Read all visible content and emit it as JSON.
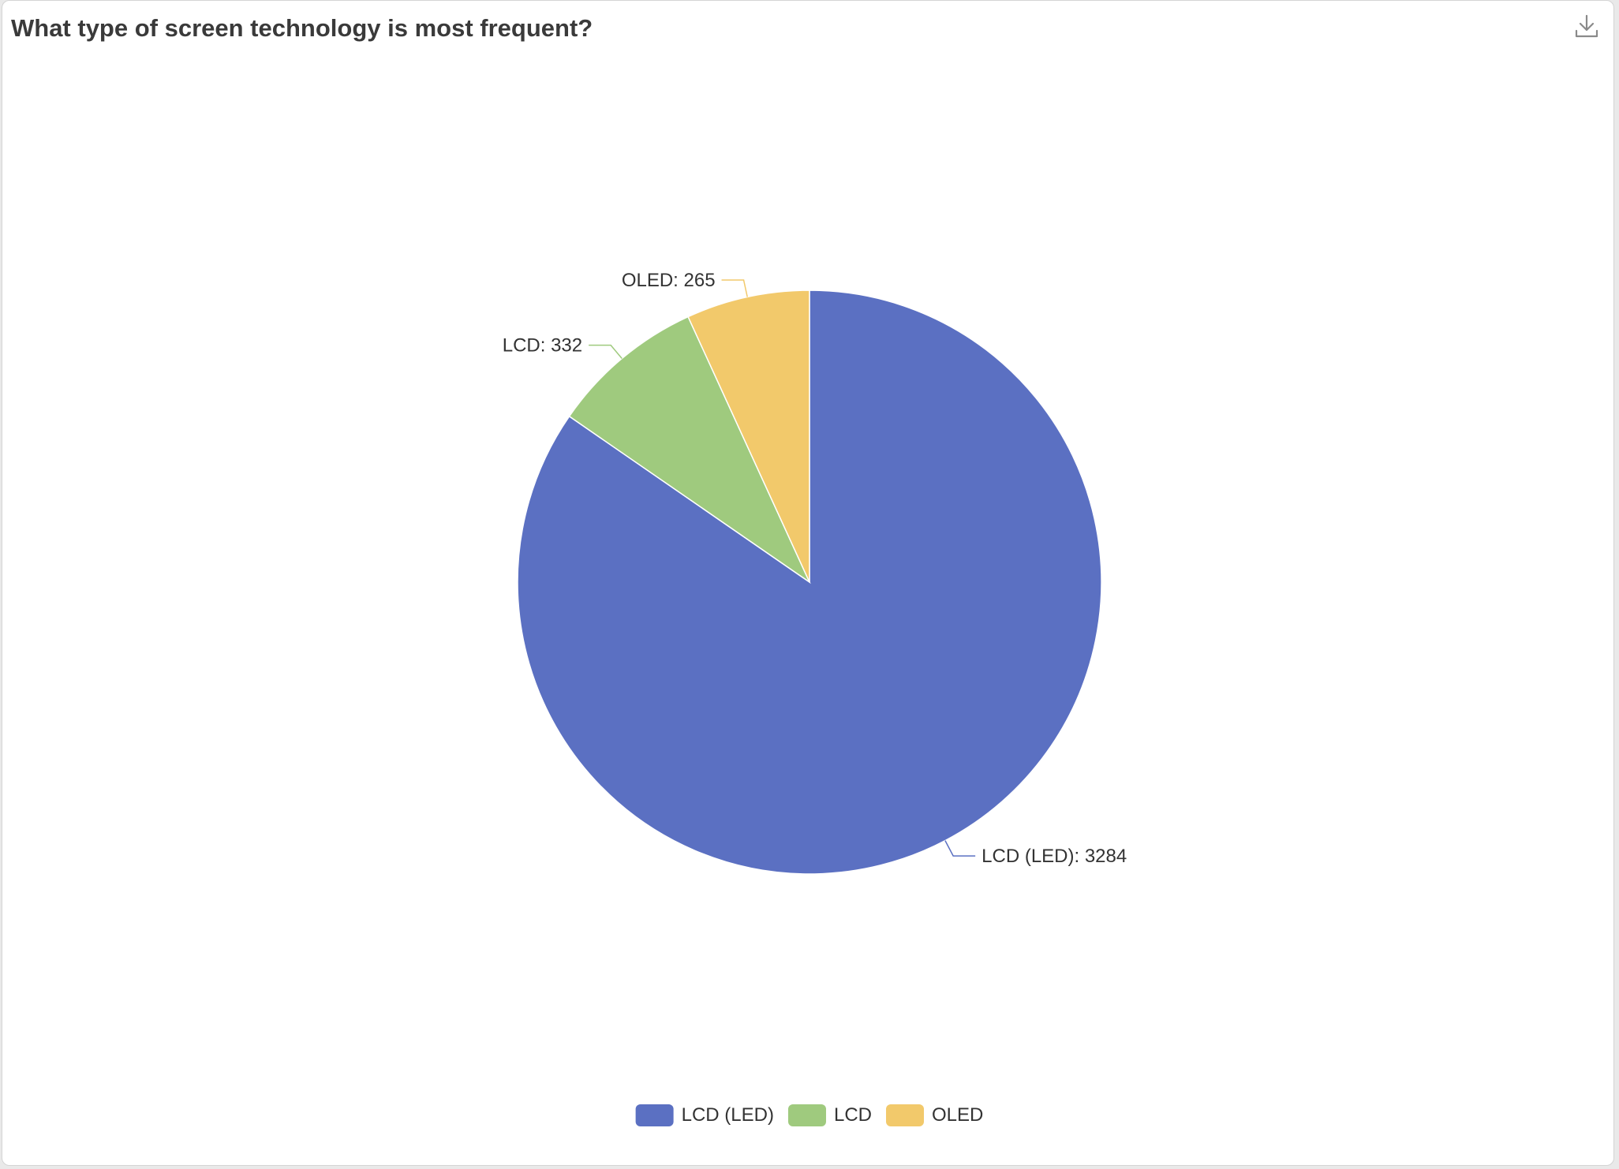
{
  "panel": {
    "title": "What type of screen technology is most frequent?",
    "download_icon": "download-icon"
  },
  "chart_data": {
    "type": "pie",
    "title": "What type of screen technology is most frequent?",
    "categories": [
      "LCD (LED)",
      "LCD",
      "OLED"
    ],
    "values": [
      3284,
      332,
      265
    ],
    "colors": [
      "#5b70c2",
      "#9fca7e",
      "#f2c96b"
    ],
    "data_labels": [
      "LCD (LED): 3284",
      "LCD: 332",
      "OLED: 265"
    ],
    "legend": {
      "placement": "bottom-center",
      "entries": [
        "LCD (LED)",
        "LCD",
        "OLED"
      ]
    }
  }
}
